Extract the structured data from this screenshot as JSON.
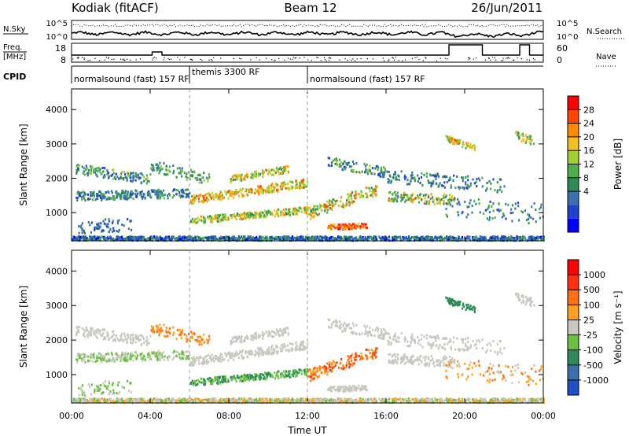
{
  "header": {
    "station": "Kodiak (fitACF)",
    "beam": "Beam 12",
    "date": "26/Jun/2011"
  },
  "noise_panel": {
    "left_label": "N.Sky",
    "right_label": "N.Search",
    "left_ticks": [
      "10^5",
      "10^0"
    ],
    "right_ticks": [
      "10^5",
      "10^0"
    ]
  },
  "freq_panel": {
    "left_label_1": "Freq.",
    "left_label_2": "[MHz]",
    "right_label": "Nave",
    "left_ticks": [
      "18",
      "8"
    ],
    "right_ticks": [
      "60",
      "0"
    ]
  },
  "cpid": {
    "label": "CPID",
    "segments": [
      {
        "text": "normalsound (fast) 157 RF",
        "start_h": 0,
        "end_h": 6
      },
      {
        "text": "themis 3300 RF",
        "start_h": 6,
        "end_h": 12
      },
      {
        "text": "normalsound (fast) 157 RF",
        "start_h": 12,
        "end_h": 24
      }
    ]
  },
  "chart_data": [
    {
      "type": "heatmap",
      "name": "power",
      "ylabel": "Slant Range [km]",
      "x_range_hours": [
        0,
        24
      ],
      "ylim": [
        180,
        4600
      ],
      "yticks": [
        1000,
        2000,
        3000,
        4000
      ],
      "colorbar": {
        "label": "Power [dB]",
        "ticks": [
          "28",
          "24",
          "20",
          "16",
          "12",
          "8",
          "4"
        ],
        "colors": [
          "#0000ff",
          "#2040d0",
          "#3a70b0",
          "#2e8b57",
          "#4daf4a",
          "#a0d030",
          "#f0c020",
          "#ff8c00",
          "#ff4500",
          "#ff0000"
        ]
      }
    },
    {
      "type": "heatmap",
      "name": "velocity",
      "ylabel": "Slant Range [km]",
      "xlabel": "Time UT",
      "x_range_hours": [
        0,
        24
      ],
      "ylim": [
        180,
        4600
      ],
      "yticks": [
        1000,
        2000,
        3000,
        4000
      ],
      "xticks": [
        "00:00",
        "04:00",
        "08:00",
        "12:00",
        "16:00",
        "20:00",
        "00:00"
      ],
      "colorbar": {
        "label": "Velocity [m s⁻¹]",
        "ticks": [
          "1000",
          "500",
          "100",
          "25",
          "-25",
          "-100",
          "-500",
          "-1000"
        ],
        "colors": [
          "#2050c8",
          "#3a70b0",
          "#2e8b57",
          "#6cc040",
          "#c8c8c0",
          "#ffa020",
          "#ff7010",
          "#ff3010",
          "#ff0000"
        ]
      }
    }
  ]
}
